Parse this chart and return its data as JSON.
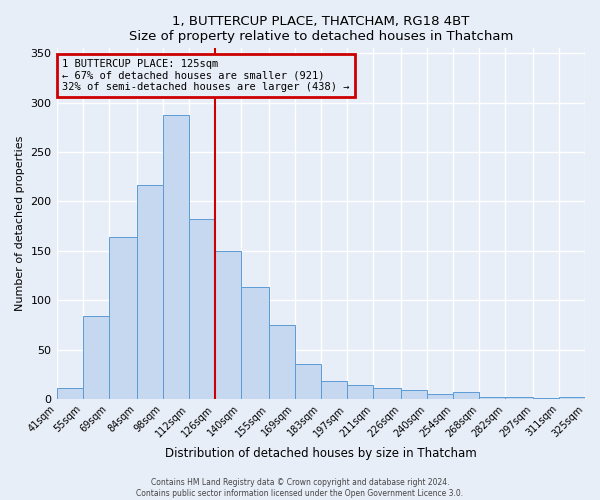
{
  "title": "1, BUTTERCUP PLACE, THATCHAM, RG18 4BT",
  "subtitle": "Size of property relative to detached houses in Thatcham",
  "xlabel": "Distribution of detached houses by size in Thatcham",
  "ylabel": "Number of detached properties",
  "bar_labels": [
    "41sqm",
    "55sqm",
    "69sqm",
    "84sqm",
    "98sqm",
    "112sqm",
    "126sqm",
    "140sqm",
    "155sqm",
    "169sqm",
    "183sqm",
    "197sqm",
    "211sqm",
    "226sqm",
    "240sqm",
    "254sqm",
    "268sqm",
    "282sqm",
    "297sqm",
    "311sqm",
    "325sqm"
  ],
  "bar_values": [
    11,
    84,
    164,
    217,
    287,
    182,
    150,
    113,
    75,
    35,
    18,
    14,
    11,
    9,
    5,
    7,
    2,
    2,
    1,
    2
  ],
  "bar_edges": [
    41,
    55,
    69,
    84,
    98,
    112,
    126,
    140,
    155,
    169,
    183,
    197,
    211,
    226,
    240,
    254,
    268,
    282,
    297,
    311,
    325
  ],
  "bar_color": "#c5d8f0",
  "bar_edge_color": "#5b9bd5",
  "vline_x": 126,
  "vline_color": "#cc0000",
  "annotation_title": "1 BUTTERCUP PLACE: 125sqm",
  "annotation_line1": "← 67% of detached houses are smaller (921)",
  "annotation_line2": "32% of semi-detached houses are larger (438) →",
  "annotation_box_color": "#cc0000",
  "ylim": [
    0,
    355
  ],
  "yticks": [
    0,
    50,
    100,
    150,
    200,
    250,
    300,
    350
  ],
  "footer1": "Contains HM Land Registry data © Crown copyright and database right 2024.",
  "footer2": "Contains public sector information licensed under the Open Government Licence 3.0.",
  "bg_color": "#e8eef8",
  "plot_bg_color": "#e8eef8",
  "grid_color": "#ffffff"
}
